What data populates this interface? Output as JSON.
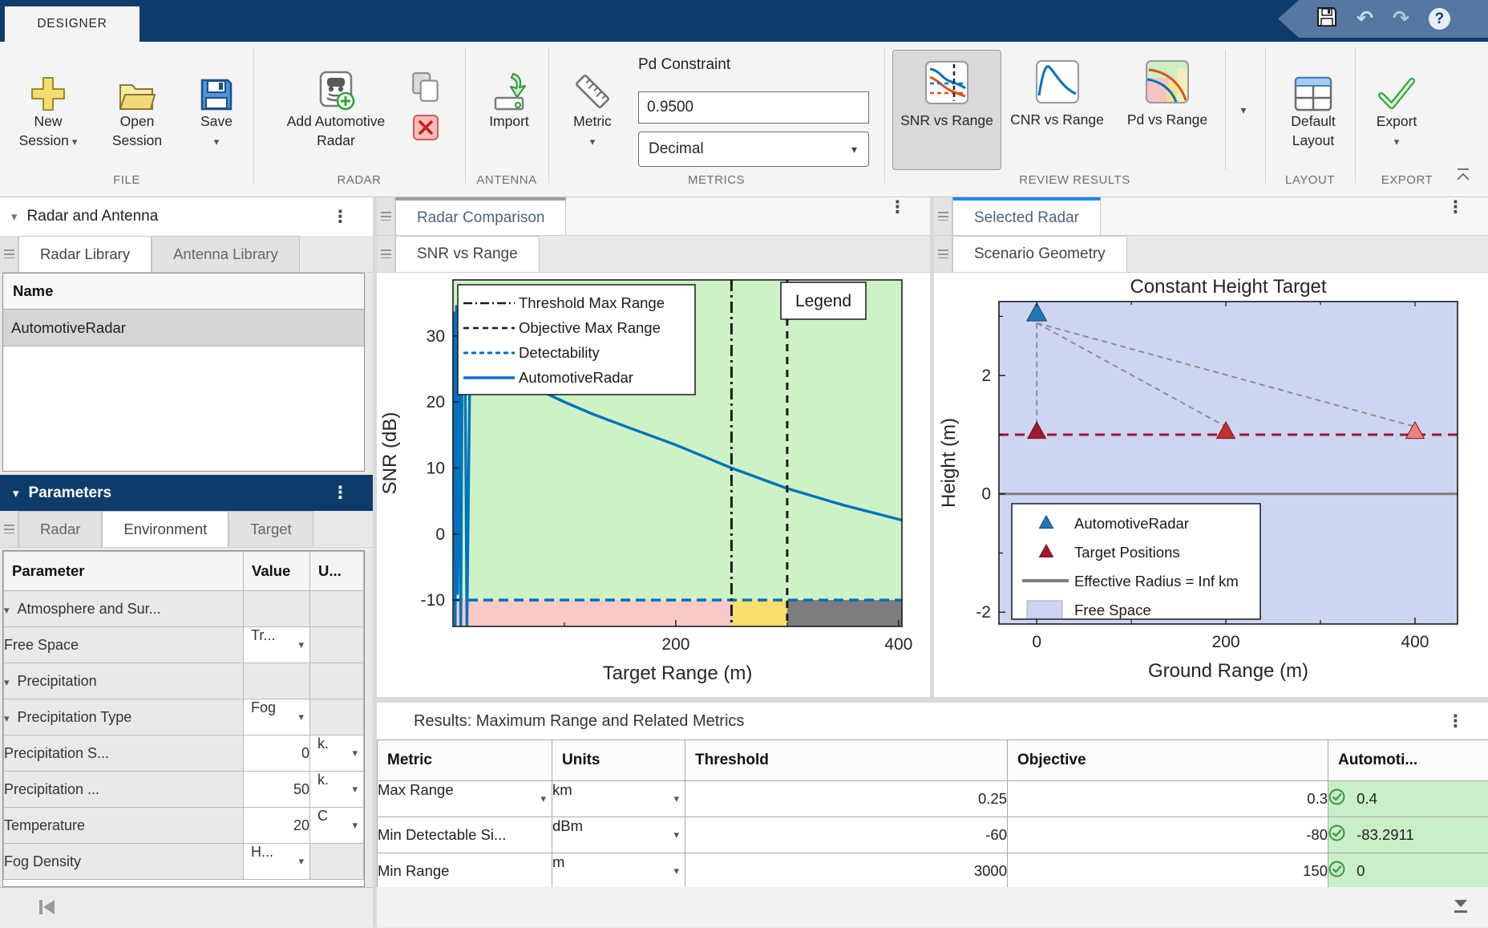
{
  "app": {
    "tab": "DESIGNER"
  },
  "ribbon": {
    "file": {
      "label": "FILE",
      "new_l1": "New",
      "new_l2": "Session",
      "open_l1": "Open",
      "open_l2": "Session",
      "save": "Save"
    },
    "radar": {
      "label": "RADAR",
      "add_l1": "Add Automotive",
      "add_l2": "Radar"
    },
    "antenna": {
      "label": "ANTENNA",
      "import": "Import"
    },
    "metrics": {
      "label": "METRICS",
      "metric": "Metric",
      "pd_constraint_label": "Pd Constraint",
      "pd_value": "0.9500",
      "format_value": "Decimal"
    },
    "review": {
      "label": "REVIEW RESULTS",
      "b1_l1": "SNR vs",
      "b1_l2": "Range",
      "b2_l1": "CNR vs",
      "b2_l2": "Range",
      "b3_l1": "Pd vs",
      "b3_l2": "Range",
      "selected": "SNR vs Range"
    },
    "layout": {
      "label": "LAYOUT",
      "l1": "Default",
      "l2": "Layout"
    },
    "export": {
      "label": "EXPORT",
      "export": "Export"
    }
  },
  "left_panel": {
    "header": "Radar and Antenna",
    "tabs": [
      "Radar Library",
      "Antenna Library"
    ],
    "active_tab": "Radar Library",
    "name_column": "Name",
    "rows": [
      "AutomotiveRadar"
    ],
    "parameters": {
      "header": "Parameters",
      "tabs": [
        "Radar",
        "Environment",
        "Target"
      ],
      "active_tab": "Environment",
      "columns": [
        "Parameter",
        "Value",
        "U..."
      ],
      "rows": [
        {
          "name": "Atmosphere and Sur...",
          "value": "",
          "unit": ""
        },
        {
          "name": "Free Space",
          "value": "Tr...",
          "unit": ""
        },
        {
          "name": "Precipitation",
          "value": "",
          "unit": ""
        },
        {
          "name": "Precipitation Type",
          "value": "Fog",
          "unit": ""
        },
        {
          "name": "Precipitation S...",
          "value": "0",
          "unit": "k."
        },
        {
          "name": "Precipitation ...",
          "value": "50",
          "unit": "k."
        },
        {
          "name": "Temperature",
          "value": "20",
          "unit": "C"
        },
        {
          "name": "Fog Density",
          "value": "H...",
          "unit": ""
        }
      ]
    }
  },
  "center_panel": {
    "tab": "Radar Comparison",
    "subtab": "SNR vs Range"
  },
  "right_panel": {
    "tab": "Selected Radar",
    "subtab": "Scenario Geometry"
  },
  "results": {
    "title": "Results: Maximum Range and Related Metrics",
    "columns": [
      "Metric",
      "Units",
      "Threshold",
      "Objective",
      "Automoti..."
    ],
    "rows": [
      {
        "metric": "Max Range",
        "units": "km",
        "threshold": "0.25",
        "objective": "0.3",
        "value": "0.4",
        "pass": true
      },
      {
        "metric": "Min Detectable Si...",
        "units": "dBm",
        "threshold": "-60",
        "objective": "-80",
        "value": "-83.2911",
        "pass": true
      },
      {
        "metric": "Min Range",
        "units": "m",
        "threshold": "3000",
        "objective": "150",
        "value": "0",
        "pass": true
      }
    ]
  },
  "chart_data": [
    {
      "id": "snr_vs_range",
      "type": "line",
      "title": "",
      "xlabel": "Target Range (m)",
      "ylabel": "SNR (dB)",
      "xlim": [
        0,
        403
      ],
      "ylim": [
        -14,
        38.5
      ],
      "xticks": [
        200,
        400
      ],
      "xticks_minor": [
        100,
        300
      ],
      "yticks": [
        -10,
        0,
        10,
        20,
        30
      ],
      "threshold_max_range_m": 250,
      "objective_max_range_m": 300,
      "detectability_dB": -10,
      "legend_box_label": "Legend",
      "legend": [
        "Threshold Max Range",
        "Objective Max Range",
        "Detectability",
        "AutomotiveRadar"
      ],
      "colors": {
        "line": "#0072BD",
        "above": "#cdf2c6",
        "below_short": "#f9c9c7",
        "mid_zone": "#f8df69",
        "beyond_objective": "#7d7d7d"
      },
      "series": [
        {
          "name": "AutomotiveRadar",
          "x": [
            0.3,
            1,
            2,
            3,
            4,
            5.5,
            7,
            8.5,
            10.5,
            12.5,
            15,
            18,
            22,
            28,
            36,
            48,
            62,
            80,
            100,
            125,
            155,
            200,
            250,
            300,
            350,
            403
          ],
          "y": [
            6,
            33.5,
            -14,
            34.5,
            -9,
            33,
            -14,
            31.5,
            34,
            -14,
            22,
            33.8,
            31.5,
            29,
            27,
            25,
            23.3,
            21.6,
            20,
            18.2,
            16.3,
            13.5,
            10,
            6.9,
            4.4,
            2.1
          ]
        }
      ]
    },
    {
      "id": "scenario_geometry",
      "type": "scatter",
      "title": "Constant Height Target",
      "xlabel": "Ground Range (m)",
      "ylabel": "Height (m)",
      "xlim": [
        -40,
        445
      ],
      "ylim": [
        -2.2,
        3.25
      ],
      "xticks": [
        0,
        200,
        400
      ],
      "xticks_minor": [
        100,
        300
      ],
      "yticks": [
        -2,
        0,
        2
      ],
      "yticks_minor": [
        -1,
        1,
        3
      ],
      "background": "#cdd5f3",
      "radar": {
        "name": "AutomotiveRadar",
        "x": 0,
        "height": 3.05,
        "color": "#2077B4"
      },
      "targets": {
        "name": "Target Positions",
        "points": [
          [
            0,
            1
          ],
          [
            200,
            1
          ],
          [
            400,
            1
          ]
        ],
        "colors": [
          "#9E1B2F",
          "#C03030",
          "#F4837D"
        ]
      },
      "target_height_line_m": 1,
      "effective_radius_line_m": 0,
      "legend": [
        "AutomotiveRadar",
        "Target Positions",
        "Effective Radius = Inf km",
        "Free Space"
      ]
    }
  ]
}
